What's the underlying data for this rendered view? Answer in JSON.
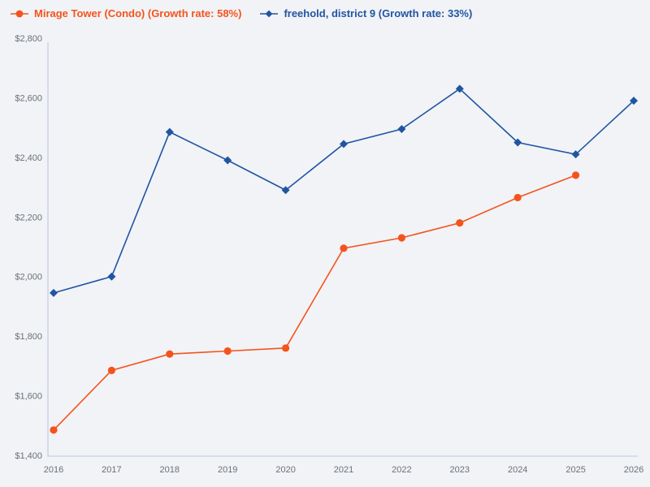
{
  "page": {
    "background": "#f1f3f6"
  },
  "chart_data": {
    "type": "line",
    "title": "",
    "xlabel": "",
    "ylabel": "",
    "grid": false,
    "legend_position": "top-left",
    "x": [
      2016,
      2017,
      2018,
      2019,
      2020,
      2021,
      2022,
      2023,
      2024,
      2025,
      2026
    ],
    "x_tick_labels": [
      "2016",
      "2017",
      "2018",
      "2019",
      "2020",
      "2021",
      "2022",
      "2023",
      "2024",
      "2025",
      "2026"
    ],
    "ylim": [
      1400,
      2800
    ],
    "y_tick_step": 200,
    "y_tick_labels": [
      "$1,400",
      "$1,600",
      "$1,800",
      "$2,000",
      "$2,200",
      "$2,400",
      "$2,600",
      "$2,800"
    ],
    "axis_color": "#c3cfe8",
    "tick_label_color": "#6b7177",
    "series": [
      {
        "name": "Mirage Tower (Condo) (Growth rate: 58%)",
        "color": "#f5531d",
        "marker": "circle",
        "values": [
          1485,
          1685,
          1740,
          1750,
          1760,
          2095,
          2130,
          2180,
          2265,
          2340,
          null
        ]
      },
      {
        "name": "freehold, district 9 (Growth rate: 33%)",
        "color": "#2155a3",
        "marker": "diamond",
        "values": [
          1945,
          2000,
          2485,
          2390,
          2290,
          2445,
          2495,
          2630,
          2450,
          2410,
          2590
        ]
      }
    ]
  }
}
